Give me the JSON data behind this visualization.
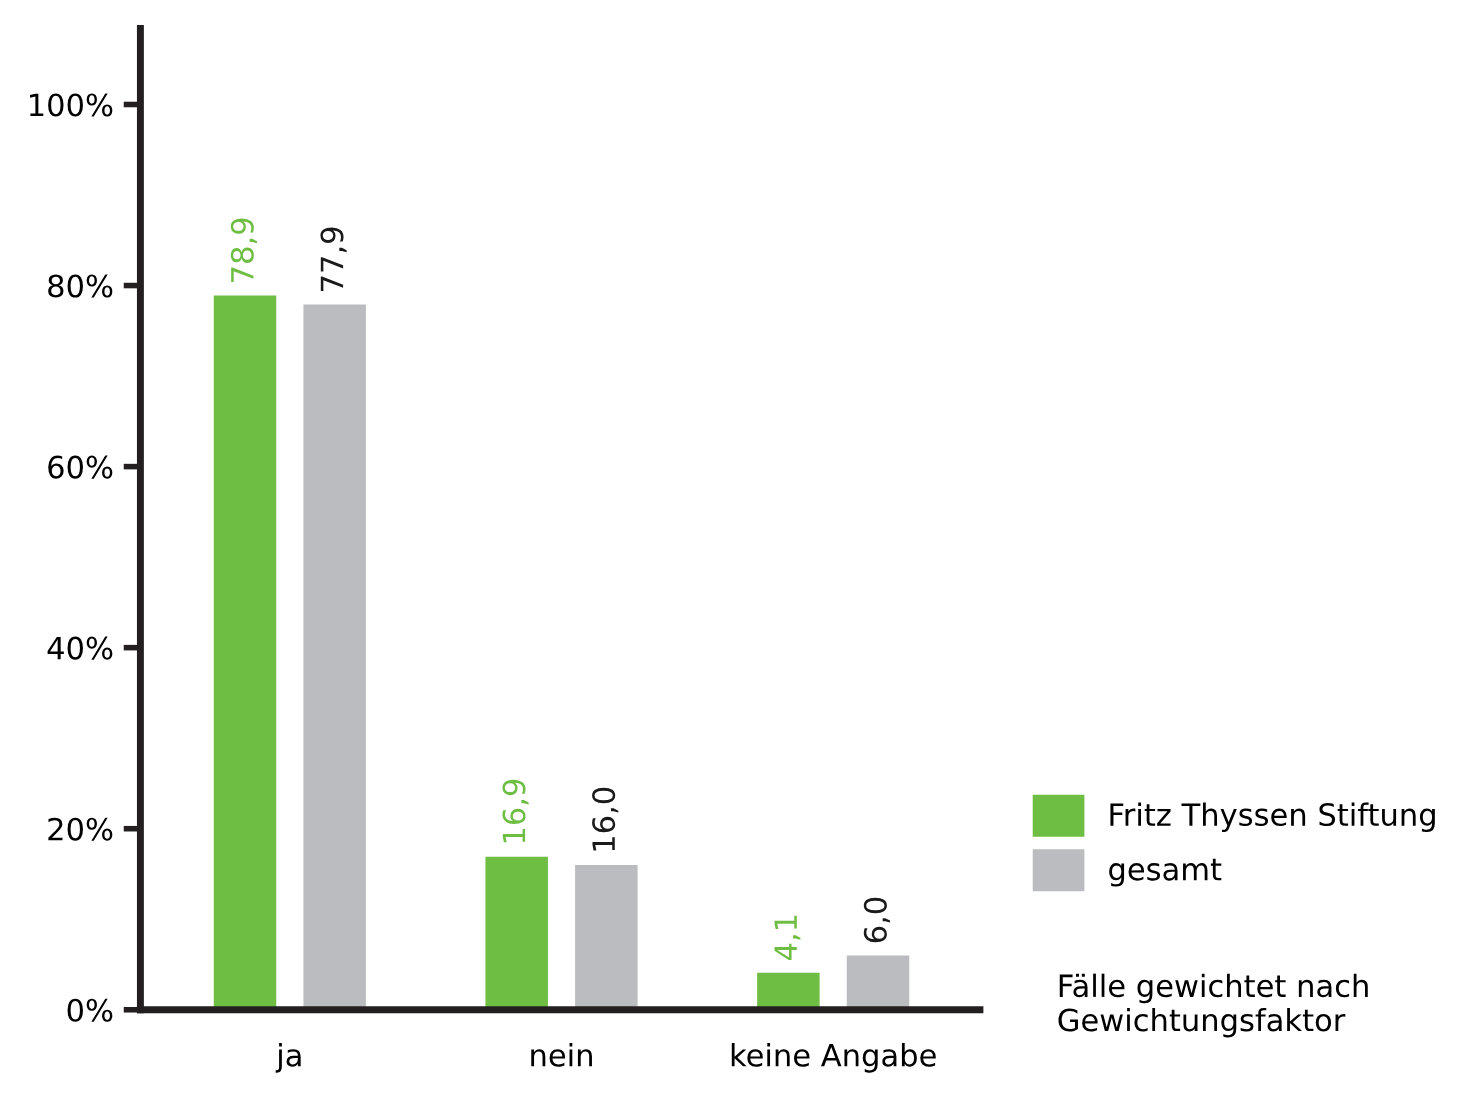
{
  "chart_data": {
    "type": "bar",
    "categories": [
      "ja",
      "nein",
      "keine Angabe"
    ],
    "series": [
      {
        "name": "Fritz Thyssen Stiftung",
        "color": "#6fbe44",
        "values": [
          78.9,
          16.9,
          4.1
        ],
        "value_labels": [
          "78,9",
          "16,9",
          "4,1"
        ]
      },
      {
        "name": "gesamt",
        "color": "#bbbcbf",
        "values": [
          77.9,
          16.0,
          6.0
        ],
        "value_labels": [
          "77,9",
          "16,0",
          "6,0"
        ]
      }
    ],
    "ylim": [
      0,
      108.4
    ],
    "yticks": [
      {
        "value": 0,
        "label": "0%"
      },
      {
        "value": 20,
        "label": "20%"
      },
      {
        "value": 40,
        "label": "40%"
      },
      {
        "value": 60,
        "label": "60%"
      },
      {
        "value": 80,
        "label": "80%"
      },
      {
        "value": 100,
        "label": "100%"
      }
    ],
    "grid": false,
    "legend": "right",
    "annotations": [
      "Fälle gewichtet nach\nGewichtungsfaktor"
    ]
  }
}
